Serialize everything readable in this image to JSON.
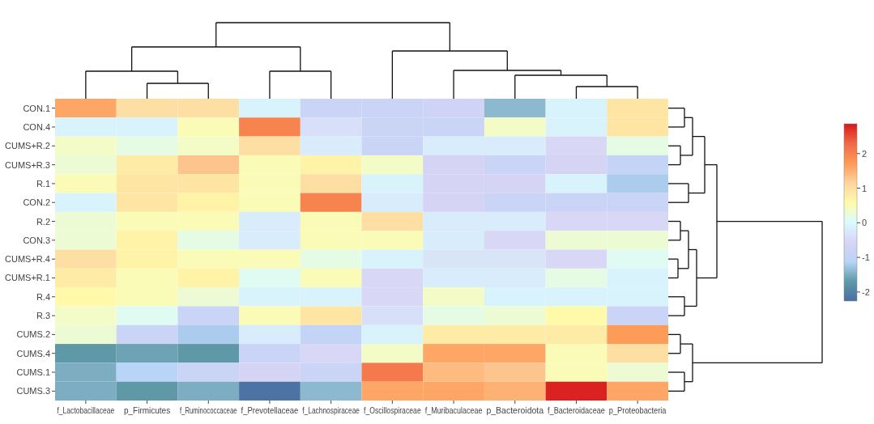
{
  "chart_data": {
    "type": "heatmap",
    "categories": [
      "f_Lactobacillaceae",
      "p_Firmicutes",
      "f_Ruminococcaceae",
      "f_Prevotellaceae",
      "f_Lachnospiraceae",
      "f_Oscillospiraceae",
      "f_Muribaculaceae",
      "p_Bacteroidota",
      "f_Bacteroidaceae",
      "p_Proteobacteria"
    ],
    "y_categories": [
      "CON.1",
      "CON.4",
      "CUMS+R.2",
      "CUMS+R.3",
      "R.1",
      "CON.2",
      "R.2",
      "CON.3",
      "CUMS+R.4",
      "CUMS+R.1",
      "R.4",
      "R.3",
      "CUMS.2",
      "CUMS.4",
      "CUMS.1",
      "CUMS.3"
    ],
    "cells": [
      [
        1.6,
        1.0,
        1.0,
        -0.1,
        -0.8,
        -0.8,
        -0.7,
        -1.4,
        -0.1,
        0.9
      ],
      [
        -0.1,
        -0.1,
        0.5,
        2.0,
        -0.4,
        -0.8,
        -0.8,
        0.4,
        -0.1,
        0.9
      ],
      [
        0.4,
        0.2,
        0.4,
        1.0,
        -0.2,
        -0.8,
        -0.2,
        -0.2,
        -0.5,
        0.2
      ],
      [
        0.3,
        0.8,
        1.3,
        0.5,
        0.7,
        0.4,
        -0.6,
        -0.8,
        -0.6,
        -0.9
      ],
      [
        0.5,
        0.9,
        0.9,
        0.5,
        1.0,
        -0.1,
        -0.6,
        -0.6,
        -0.1,
        -1.2
      ],
      [
        -0.1,
        0.9,
        0.7,
        0.5,
        2.0,
        -0.2,
        -0.6,
        -0.8,
        -0.8,
        -0.8
      ],
      [
        0.3,
        0.5,
        0.5,
        -0.2,
        0.5,
        1.0,
        -0.2,
        -0.2,
        -0.5,
        -0.5
      ],
      [
        0.3,
        0.7,
        0.2,
        -0.2,
        0.5,
        0.5,
        -0.2,
        -0.5,
        0.3,
        0.3
      ],
      [
        1.0,
        0.7,
        0.5,
        0.5,
        0.2,
        -0.1,
        -0.3,
        -0.3,
        -0.5,
        0.1
      ],
      [
        0.8,
        0.5,
        0.7,
        0.1,
        0.5,
        -0.5,
        -0.2,
        -0.2,
        0.2,
        -0.1
      ],
      [
        0.6,
        0.5,
        0.3,
        -0.1,
        -0.1,
        -0.5,
        0.4,
        -0.1,
        -0.1,
        -0.1
      ],
      [
        0.4,
        0.1,
        -0.8,
        0.5,
        0.9,
        -0.4,
        0.2,
        0.3,
        0.6,
        -0.8
      ],
      [
        0.3,
        -0.8,
        -1.2,
        -0.2,
        -0.9,
        -0.1,
        0.8,
        0.8,
        0.8,
        1.7
      ],
      [
        -1.7,
        -1.6,
        -1.7,
        -0.8,
        -0.5,
        0.4,
        1.6,
        1.6,
        0.5,
        1.0
      ],
      [
        -1.5,
        -1.1,
        -0.8,
        -0.6,
        -0.8,
        2.1,
        1.4,
        1.3,
        0.5,
        0.3
      ],
      [
        -1.5,
        -1.7,
        -1.5,
        -2.2,
        -1.4,
        1.6,
        1.6,
        1.5,
        2.8,
        1.6
      ]
    ],
    "clim": [
      -2.26,
      2.86
    ],
    "cticks": [
      -2,
      -1,
      0,
      1,
      2
    ]
  }
}
